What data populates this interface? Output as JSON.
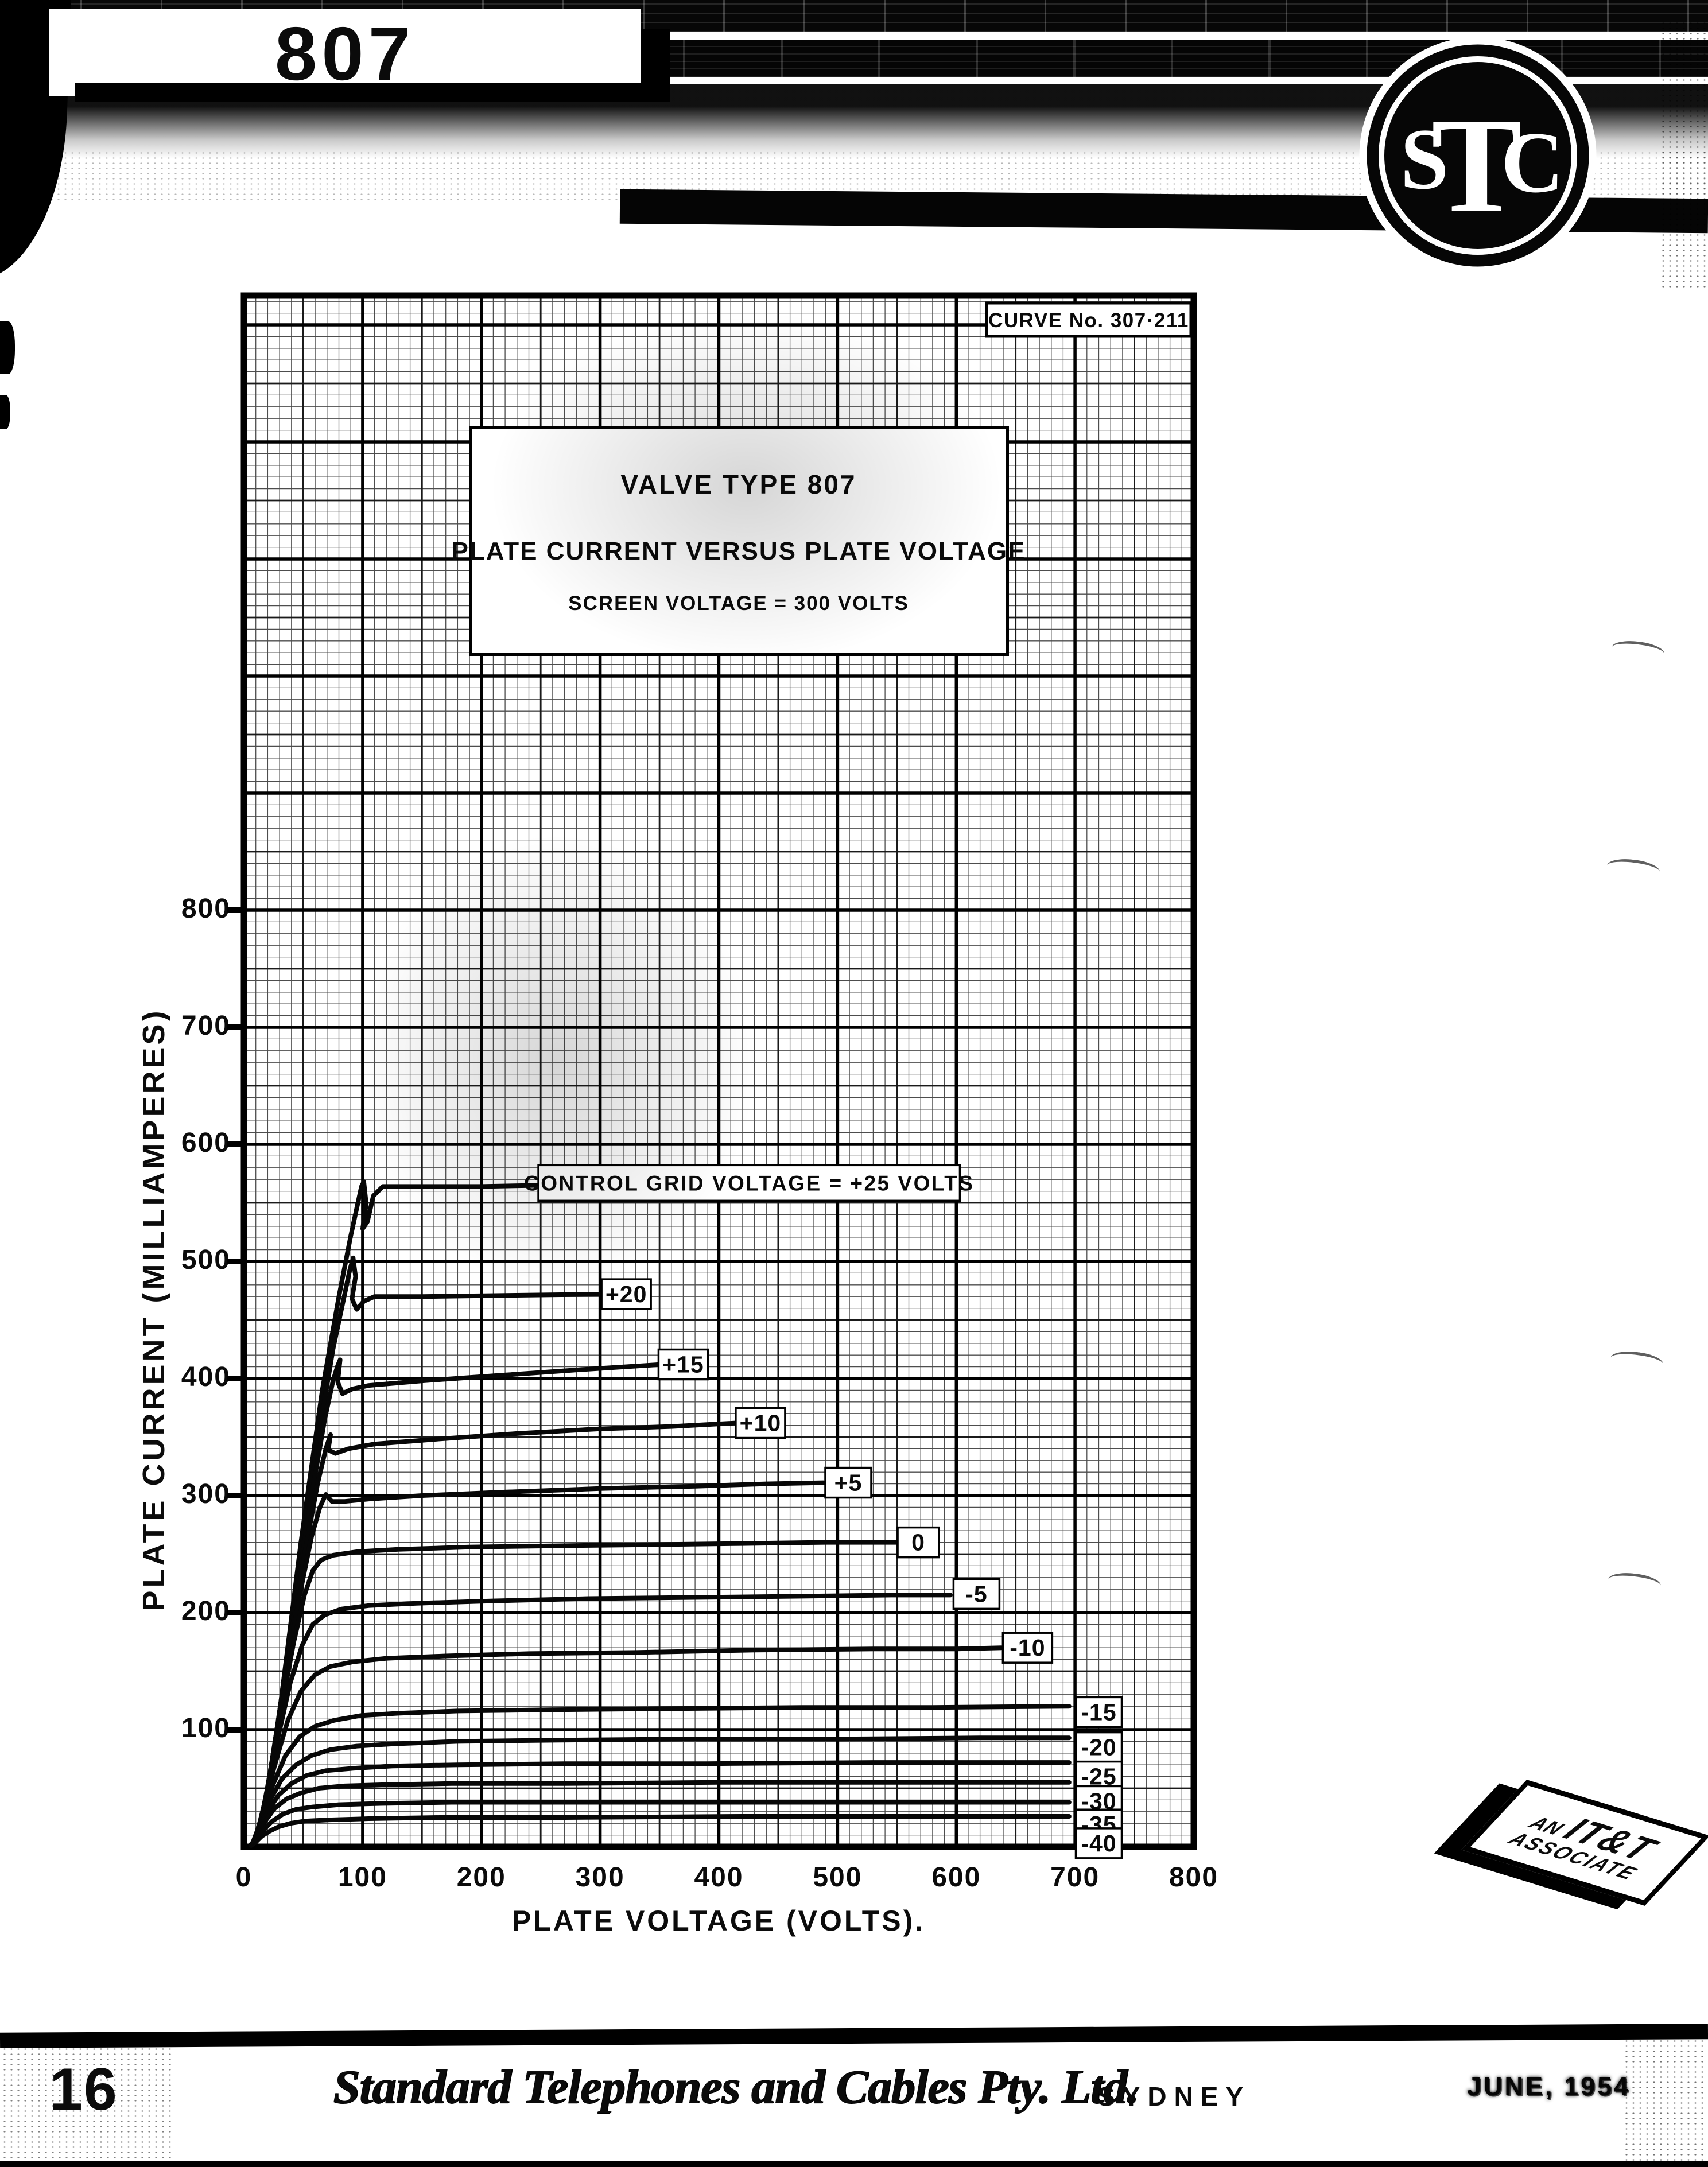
{
  "colors": {
    "ink": "#0b0b0b",
    "paper": "#ffffff"
  },
  "header": {
    "tube_number": "807",
    "logo": {
      "s": "S",
      "t": "T",
      "c": "C"
    }
  },
  "chart": {
    "curve_number": "CURVE No. 307·211",
    "title": [
      "VALVE TYPE 807",
      "PLATE CURRENT VERSUS PLATE VOLTAGE",
      "SCREEN VOLTAGE = 300 VOLTS"
    ],
    "x_axis_title": "PLATE VOLTAGE (VOLTS).",
    "y_axis_title": "PLATE CURRENT (MILLIAMPERES)",
    "x_ticks": [
      "0",
      "100",
      "200",
      "300",
      "400",
      "500",
      "600",
      "700",
      "800"
    ],
    "y_ticks": [
      "800",
      "700",
      "600",
      "500",
      "400",
      "300",
      "200",
      "100"
    ]
  },
  "chart_data": {
    "type": "line",
    "title": "VALVE TYPE 807 — PLATE CURRENT VERSUS PLATE VOLTAGE",
    "subtitle": "SCREEN VOLTAGE = 300 VOLTS",
    "xlabel": "PLATE VOLTAGE (VOLTS)",
    "ylabel": "PLATE CURRENT (MILLIAMPERES)",
    "xlim": [
      0,
      800
    ],
    "ylim": [
      0,
      1325
    ],
    "grid": {
      "minor_step": 10,
      "medium_step": 50,
      "major_step": 100
    },
    "legend_position": "inline-labels",
    "screen_voltage_volts": 300,
    "family_label": "CONTROL GRID VOLTAGE = +25 VOLTS",
    "series": [
      {
        "grid_v": 25,
        "label": {
          "text": "CONTROL GRID VOLTAGE = +25 VOLTS",
          "box_v": [
            248,
            603
          ],
          "cy": 567,
          "big": true
        },
        "points": [
          [
            15,
            18
          ],
          [
            30,
            115
          ],
          [
            48,
            260
          ],
          [
            66,
            390
          ],
          [
            80,
            470
          ],
          [
            90,
            522
          ],
          [
            96,
            550
          ],
          [
            99,
            564
          ],
          [
            101,
            568
          ],
          [
            103,
            549
          ],
          [
            100,
            528
          ],
          [
            104,
            534
          ],
          [
            109,
            556
          ],
          [
            117,
            564
          ],
          [
            150,
            564
          ],
          [
            200,
            564
          ],
          [
            250,
            565
          ]
        ]
      },
      {
        "grid_v": 20,
        "label": {
          "text": "+20",
          "cx": 322,
          "cy": 472,
          "w": 86
        },
        "points": [
          [
            15,
            16
          ],
          [
            28,
            100
          ],
          [
            45,
            230
          ],
          [
            62,
            345
          ],
          [
            75,
            425
          ],
          [
            84,
            468
          ],
          [
            89,
            492
          ],
          [
            92,
            503
          ],
          [
            94,
            487
          ],
          [
            91,
            468
          ],
          [
            95,
            459
          ],
          [
            101,
            466
          ],
          [
            110,
            470
          ],
          [
            150,
            470
          ],
          [
            220,
            471
          ],
          [
            300,
            472
          ]
        ]
      },
      {
        "grid_v": 15,
        "label": {
          "text": "+15",
          "cx": 370,
          "cy": 412,
          "w": 86
        },
        "points": [
          [
            14,
            14
          ],
          [
            26,
            88
          ],
          [
            42,
            200
          ],
          [
            57,
            300
          ],
          [
            68,
            365
          ],
          [
            75,
            398
          ],
          [
            79,
            411
          ],
          [
            81,
            416
          ],
          [
            79,
            397
          ],
          [
            83,
            387
          ],
          [
            91,
            391
          ],
          [
            105,
            394
          ],
          [
            150,
            398
          ],
          [
            220,
            403
          ],
          [
            290,
            408
          ],
          [
            352,
            412
          ]
        ]
      },
      {
        "grid_v": 10,
        "label": {
          "text": "+10",
          "cx": 435,
          "cy": 362,
          "w": 86
        },
        "points": [
          [
            13,
            12
          ],
          [
            24,
            75
          ],
          [
            38,
            170
          ],
          [
            52,
            255
          ],
          [
            62,
            310
          ],
          [
            69,
            340
          ],
          [
            73,
            352
          ],
          [
            71,
            339
          ],
          [
            77,
            336
          ],
          [
            88,
            340
          ],
          [
            110,
            344
          ],
          [
            160,
            348
          ],
          [
            230,
            353
          ],
          [
            300,
            357
          ],
          [
            360,
            359
          ],
          [
            415,
            362
          ]
        ]
      },
      {
        "grid_v": 5,
        "label": {
          "text": "+5",
          "cx": 509,
          "cy": 311,
          "w": 80
        },
        "points": [
          [
            12,
            10
          ],
          [
            22,
            62
          ],
          [
            34,
            140
          ],
          [
            47,
            215
          ],
          [
            57,
            265
          ],
          [
            64,
            290
          ],
          [
            69,
            301
          ],
          [
            74,
            295
          ],
          [
            85,
            295
          ],
          [
            105,
            297
          ],
          [
            150,
            300
          ],
          [
            220,
            303
          ],
          [
            300,
            306
          ],
          [
            380,
            308
          ],
          [
            440,
            310
          ],
          [
            488,
            311
          ]
        ]
      },
      {
        "grid_v": 0,
        "label": {
          "text": "0",
          "cx": 568,
          "cy": 260,
          "w": 72
        },
        "points": [
          [
            11,
            8
          ],
          [
            20,
            50
          ],
          [
            31,
            115
          ],
          [
            42,
            175
          ],
          [
            51,
            215
          ],
          [
            58,
            236
          ],
          [
            65,
            245
          ],
          [
            75,
            249
          ],
          [
            95,
            252
          ],
          [
            130,
            254
          ],
          [
            190,
            256
          ],
          [
            260,
            257
          ],
          [
            340,
            258
          ],
          [
            420,
            259
          ],
          [
            490,
            260
          ],
          [
            550,
            260
          ]
        ]
      },
      {
        "grid_v": -5,
        "label": {
          "text": "-5",
          "cx": 617,
          "cy": 216,
          "w": 80
        },
        "points": [
          [
            10,
            7
          ],
          [
            18,
            40
          ],
          [
            28,
            90
          ],
          [
            39,
            140
          ],
          [
            49,
            172
          ],
          [
            58,
            190
          ],
          [
            68,
            198
          ],
          [
            82,
            203
          ],
          [
            105,
            206
          ],
          [
            145,
            208
          ],
          [
            210,
            210
          ],
          [
            290,
            212
          ],
          [
            380,
            213
          ],
          [
            470,
            214
          ],
          [
            545,
            215
          ],
          [
            595,
            215
          ]
        ]
      },
      {
        "grid_v": -10,
        "label": {
          "text": "-10",
          "cx": 660,
          "cy": 170,
          "w": 86
        },
        "points": [
          [
            9,
            6
          ],
          [
            16,
            30
          ],
          [
            26,
            70
          ],
          [
            37,
            108
          ],
          [
            48,
            133
          ],
          [
            60,
            147
          ],
          [
            73,
            154
          ],
          [
            92,
            158
          ],
          [
            120,
            161
          ],
          [
            170,
            163
          ],
          [
            240,
            165
          ],
          [
            330,
            166
          ],
          [
            430,
            168
          ],
          [
            530,
            169
          ],
          [
            600,
            169
          ],
          [
            638,
            170
          ]
        ]
      },
      {
        "grid_v": -15,
        "label": {
          "text": "-15",
          "cx": 720,
          "cy": 115,
          "w": 80
        },
        "points": [
          [
            8,
            5
          ],
          [
            15,
            24
          ],
          [
            24,
            52
          ],
          [
            35,
            78
          ],
          [
            47,
            94
          ],
          [
            60,
            103
          ],
          [
            76,
            108
          ],
          [
            98,
            112
          ],
          [
            130,
            114
          ],
          [
            180,
            116
          ],
          [
            260,
            117
          ],
          [
            360,
            118
          ],
          [
            470,
            119
          ],
          [
            580,
            119
          ],
          [
            695,
            120
          ]
        ]
      },
      {
        "grid_v": -20,
        "label": {
          "text": "-20",
          "cx": 720,
          "cy": 85,
          "w": 80
        },
        "points": [
          [
            8,
            4
          ],
          [
            14,
            18
          ],
          [
            22,
            40
          ],
          [
            32,
            58
          ],
          [
            44,
            70
          ],
          [
            57,
            78
          ],
          [
            73,
            83
          ],
          [
            95,
            86
          ],
          [
            128,
            88
          ],
          [
            180,
            90
          ],
          [
            260,
            91
          ],
          [
            370,
            92
          ],
          [
            500,
            92
          ],
          [
            620,
            93
          ],
          [
            695,
            93
          ]
        ]
      },
      {
        "grid_v": -25,
        "label": {
          "text": "-25",
          "cx": 720,
          "cy": 60,
          "w": 80
        },
        "points": [
          [
            7,
            3
          ],
          [
            13,
            14
          ],
          [
            20,
            30
          ],
          [
            29,
            44
          ],
          [
            40,
            54
          ],
          [
            53,
            61
          ],
          [
            69,
            65
          ],
          [
            92,
            67
          ],
          [
            125,
            69
          ],
          [
            180,
            70
          ],
          [
            270,
            71
          ],
          [
            390,
            71
          ],
          [
            530,
            72
          ],
          [
            650,
            72
          ],
          [
            695,
            72
          ]
        ]
      },
      {
        "grid_v": -30,
        "label": {
          "text": "-30",
          "cx": 720,
          "cy": 39,
          "w": 80
        },
        "points": [
          [
            7,
            3
          ],
          [
            12,
            10
          ],
          [
            18,
            22
          ],
          [
            26,
            33
          ],
          [
            36,
            41
          ],
          [
            48,
            46
          ],
          [
            63,
            50
          ],
          [
            85,
            52
          ],
          [
            118,
            53
          ],
          [
            175,
            54
          ],
          [
            270,
            54
          ],
          [
            400,
            55
          ],
          [
            550,
            55
          ],
          [
            695,
            55
          ]
        ]
      },
      {
        "grid_v": -35,
        "label": {
          "text": "-35",
          "cx": 720,
          "cy": 19,
          "w": 80
        },
        "points": [
          [
            6,
            2
          ],
          [
            11,
            7
          ],
          [
            17,
            15
          ],
          [
            24,
            22
          ],
          [
            33,
            28
          ],
          [
            44,
            32
          ],
          [
            58,
            34
          ],
          [
            80,
            36
          ],
          [
            115,
            37
          ],
          [
            175,
            38
          ],
          [
            280,
            38
          ],
          [
            430,
            38
          ],
          [
            580,
            38
          ],
          [
            695,
            38
          ]
        ]
      },
      {
        "grid_v": -40,
        "label": {
          "text": "-40",
          "cx": 720,
          "cy": 3,
          "w": 80
        },
        "points": [
          [
            6,
            1
          ],
          [
            10,
            4
          ],
          [
            15,
            9
          ],
          [
            21,
            13
          ],
          [
            29,
            17
          ],
          [
            39,
            20
          ],
          [
            52,
            22
          ],
          [
            72,
            23
          ],
          [
            105,
            24
          ],
          [
            165,
            25
          ],
          [
            270,
            25
          ],
          [
            420,
            26
          ],
          [
            580,
            26
          ],
          [
            695,
            26
          ]
        ]
      }
    ]
  },
  "badge": {
    "an": "AN",
    "itt": "IT&T",
    "associate": "ASSOCIATE"
  },
  "footer": {
    "page_number": "16",
    "company": "Standard Telephones and Cables Pty. Ltd.",
    "city": "SYDNEY",
    "date": "JUNE, 1954"
  }
}
